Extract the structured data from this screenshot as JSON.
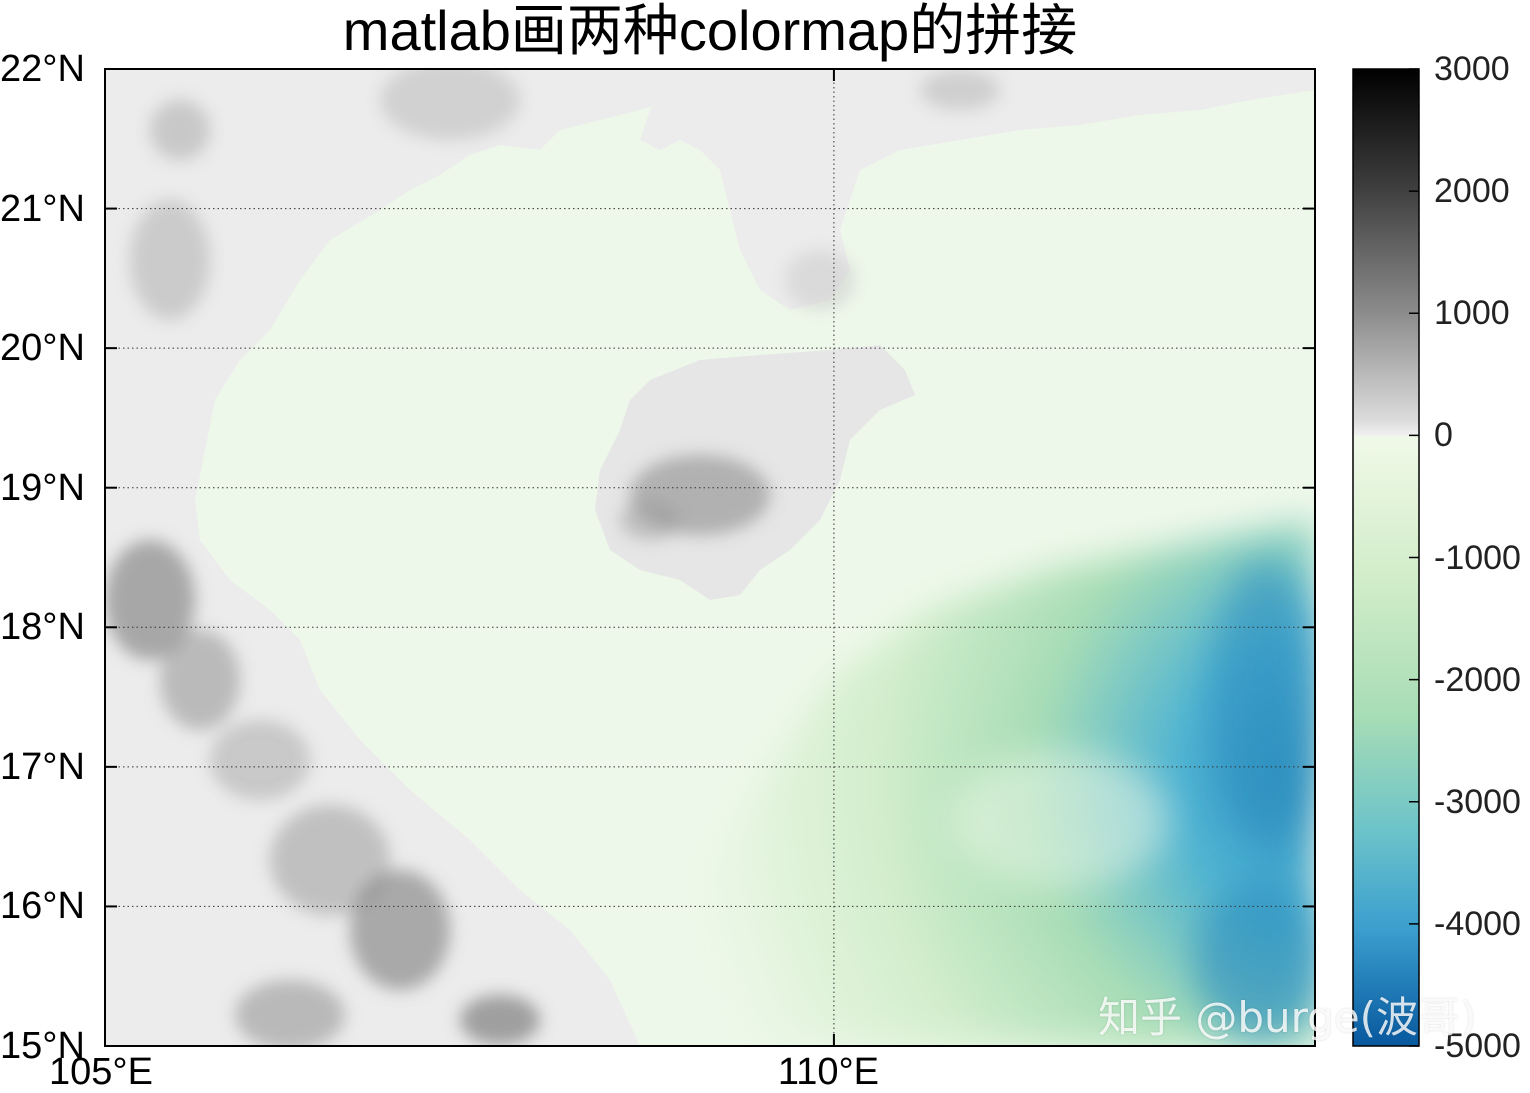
{
  "title": "matlab画两种colormap的拼接",
  "map": {
    "lon_range": [
      105,
      113.3
    ],
    "lat_range": [
      15,
      22
    ],
    "lon_ticks": [
      {
        "value": 105,
        "label": "105°E"
      },
      {
        "value": 110,
        "label": "110°E"
      }
    ],
    "lat_ticks": [
      {
        "value": 22,
        "label": "22°N"
      },
      {
        "value": 21,
        "label": "21°N"
      },
      {
        "value": 20,
        "label": "20°N"
      },
      {
        "value": 19,
        "label": "19°N"
      },
      {
        "value": 18,
        "label": "18°N"
      },
      {
        "value": 17,
        "label": "17°N"
      },
      {
        "value": 16,
        "label": "16°N"
      },
      {
        "value": 15,
        "label": "15°N"
      }
    ],
    "grid": "dotted",
    "land_color": "#eeeeee",
    "shallow_sea_color": "#eef8ea"
  },
  "colorbar": {
    "range": [
      -5000,
      3000
    ],
    "ticks": [
      "3000",
      "2000",
      "1000",
      "0",
      "-1000",
      "-2000",
      "-3000",
      "-4000",
      "-5000"
    ],
    "tick_values": [
      3000,
      2000,
      1000,
      0,
      -1000,
      -2000,
      -3000,
      -4000,
      -5000
    ],
    "land_colormap": [
      "#ffffff",
      "#d9d9d9",
      "#a6a6a6",
      "#6e6e6e",
      "#3a3a3a",
      "#000000"
    ],
    "sea_colormap": [
      "#f0f9e8",
      "#ccebc5",
      "#a8ddb5",
      "#7bccc4",
      "#4eb3d3",
      "#2b8cbe",
      "#08589e"
    ]
  },
  "watermark": "知乎 @burge(波哥)"
}
